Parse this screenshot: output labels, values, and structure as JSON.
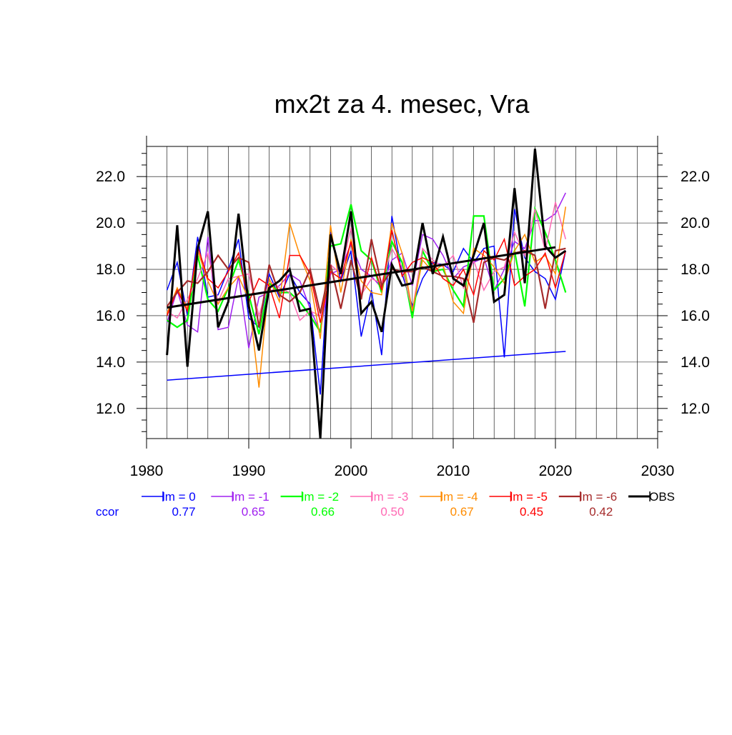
{
  "chart_data": {
    "type": "line",
    "title": "mx2t za 4. mesec, Vra",
    "xlabel": "",
    "ylabel": "",
    "xlim": [
      1980,
      2030
    ],
    "ylim": [
      10.7,
      23.3
    ],
    "x_ticks": [
      1980,
      1990,
      2000,
      2010,
      2020,
      2030
    ],
    "x_tick_labels": [
      "1980",
      "1990",
      "2000",
      "2010",
      "2020",
      "2030"
    ],
    "y_ticks": [
      12,
      14,
      16,
      18,
      20,
      22
    ],
    "y_tick_labels": [
      "12.0",
      "14.0",
      "16.0",
      "18.0",
      "20.0",
      "22.0"
    ],
    "grid": true,
    "legend_position": "bottom",
    "x": [
      1982,
      1983,
      1984,
      1985,
      1986,
      1987,
      1988,
      1989,
      1990,
      1991,
      1992,
      1993,
      1994,
      1995,
      1996,
      1997,
      1998,
      1999,
      2000,
      2001,
      2002,
      2003,
      2004,
      2005,
      2006,
      2007,
      2008,
      2009,
      2010,
      2011,
      2012,
      2013,
      2014,
      2015,
      2016,
      2017,
      2018,
      2019,
      2020,
      2021
    ],
    "series": [
      {
        "name": "lm = 0",
        "color": "#0000ff",
        "width": 1.5,
        "values": [
          17.1,
          18.3,
          16.0,
          19.4,
          16.8,
          16.9,
          18.0,
          19.3,
          15.9,
          15.5,
          17.8,
          16.8,
          17.8,
          17.0,
          16.5,
          12.6,
          19.6,
          17.5,
          18.8,
          15.1,
          17.1,
          14.3,
          20.3,
          17.8,
          16.4,
          17.6,
          18.3,
          18.2,
          17.9,
          18.9,
          18.3,
          18.9,
          19.0,
          14.2,
          20.6,
          18.5,
          17.9,
          17.6,
          16.7,
          18.8
        ]
      },
      {
        "name": "lm = -1",
        "color": "#a020f0",
        "width": 1.5,
        "values": [
          15.7,
          17.1,
          15.6,
          15.3,
          19.4,
          15.4,
          15.5,
          17.7,
          14.6,
          16.8,
          17.0,
          17.3,
          17.8,
          17.5,
          16.3,
          15.3,
          17.8,
          18.0,
          19.1,
          18.0,
          17.7,
          17.2,
          18.4,
          18.7,
          17.3,
          19.5,
          19.3,
          18.6,
          17.6,
          18.1,
          18.3,
          18.5,
          17.1,
          18.0,
          19.2,
          18.9,
          20.1,
          20.1,
          20.4,
          21.3
        ]
      },
      {
        "name": "lm = -2",
        "color": "#00ff00",
        "width": 2.2,
        "values": [
          15.8,
          15.5,
          15.8,
          18.6,
          16.7,
          16.2,
          17.2,
          18.4,
          16.9,
          15.2,
          17.4,
          17.0,
          17.0,
          16.6,
          16.0,
          15.3,
          19.0,
          19.1,
          20.8,
          18.8,
          18.4,
          17.0,
          19.2,
          18.3,
          15.9,
          18.8,
          17.9,
          18.0,
          17.1,
          16.4,
          20.3,
          20.3,
          17.1,
          17.6,
          18.8,
          16.4,
          20.6,
          19.6,
          18.4,
          17.0
        ]
      },
      {
        "name": "lm = -3",
        "color": "#ff69b4",
        "width": 1.5,
        "values": [
          16.2,
          15.9,
          16.7,
          17.6,
          18.7,
          16.6,
          17.6,
          17.7,
          17.8,
          16.0,
          17.5,
          17.2,
          17.0,
          15.8,
          16.2,
          16.0,
          18.2,
          17.8,
          19.8,
          16.9,
          17.6,
          17.4,
          18.9,
          18.1,
          16.2,
          18.9,
          18.4,
          18.1,
          18.6,
          17.2,
          18.4,
          17.1,
          17.9,
          18.1,
          19.6,
          18.6,
          20.6,
          18.8,
          20.9,
          19.3
        ]
      },
      {
        "name": "lm = -4",
        "color": "#ff8c00",
        "width": 1.5,
        "values": [
          16.1,
          17.2,
          16.3,
          18.8,
          17.5,
          16.5,
          17.2,
          17.7,
          16.7,
          12.9,
          17.6,
          16.6,
          20.0,
          18.6,
          17.5,
          15.0,
          19.9,
          17.0,
          19.3,
          17.5,
          17.0,
          16.9,
          20.0,
          18.7,
          16.2,
          18.4,
          17.9,
          18.2,
          16.6,
          16.1,
          18.9,
          18.6,
          18.1,
          17.4,
          18.8,
          19.5,
          18.3,
          18.6,
          17.8,
          20.7
        ]
      },
      {
        "name": "lm = -5",
        "color": "#ff0000",
        "width": 1.5,
        "values": [
          16.0,
          17.1,
          16.2,
          19.0,
          17.6,
          17.2,
          17.9,
          18.7,
          16.6,
          17.6,
          17.3,
          15.9,
          18.6,
          18.6,
          17.8,
          15.7,
          17.9,
          17.6,
          19.2,
          16.8,
          18.5,
          17.1,
          19.7,
          17.7,
          18.3,
          18.5,
          18.3,
          17.6,
          17.3,
          18.0,
          16.9,
          18.8,
          18.4,
          19.3,
          17.3,
          17.7,
          18.0,
          18.7,
          17.2,
          18.8
        ]
      },
      {
        "name": "lm = -6",
        "color": "#a52a2a",
        "width": 2.2,
        "values": [
          16.4,
          17.0,
          17.5,
          17.4,
          17.9,
          18.6,
          18.0,
          18.5,
          18.3,
          15.5,
          18.2,
          16.9,
          16.6,
          17.0,
          18.0,
          16.1,
          18.2,
          16.3,
          18.4,
          16.7,
          19.3,
          17.3,
          18.0,
          17.9,
          17.9,
          18.1,
          17.9,
          17.7,
          17.7,
          17.6,
          15.7,
          18.3,
          18.5,
          18.4,
          18.7,
          18.8,
          18.6,
          16.3,
          18.8,
          18.9
        ]
      },
      {
        "name": "OBS",
        "color": "#000000",
        "width": 3,
        "values": [
          14.3,
          19.9,
          13.8,
          18.9,
          20.5,
          15.5,
          16.6,
          20.4,
          16.4,
          14.5,
          17.2,
          17.5,
          18.0,
          16.2,
          16.3,
          10.7,
          19.5,
          17.8,
          20.5,
          16.1,
          16.6,
          15.3,
          18.2,
          17.3,
          17.4,
          20.0,
          17.8,
          19.4,
          17.6,
          17.3,
          18.6,
          20.0,
          16.6,
          16.9,
          21.5,
          17.4,
          23.2,
          19.0,
          18.5,
          18.8
        ]
      }
    ],
    "trend_lines": [
      {
        "color": "#0000ff",
        "width": 1.5,
        "x": [
          1982,
          2021
        ],
        "values": [
          13.22,
          14.46
        ]
      },
      {
        "color": "#000000",
        "width": 3,
        "x": [
          1982,
          2020
        ],
        "values": [
          16.35,
          18.95
        ]
      }
    ],
    "ccor_label": "ccor",
    "ccor_color": "#0000ff",
    "ccor_values": [
      "0.77",
      "0.65",
      "0.66",
      "0.50",
      "0.67",
      "0.45",
      "0.42"
    ]
  }
}
